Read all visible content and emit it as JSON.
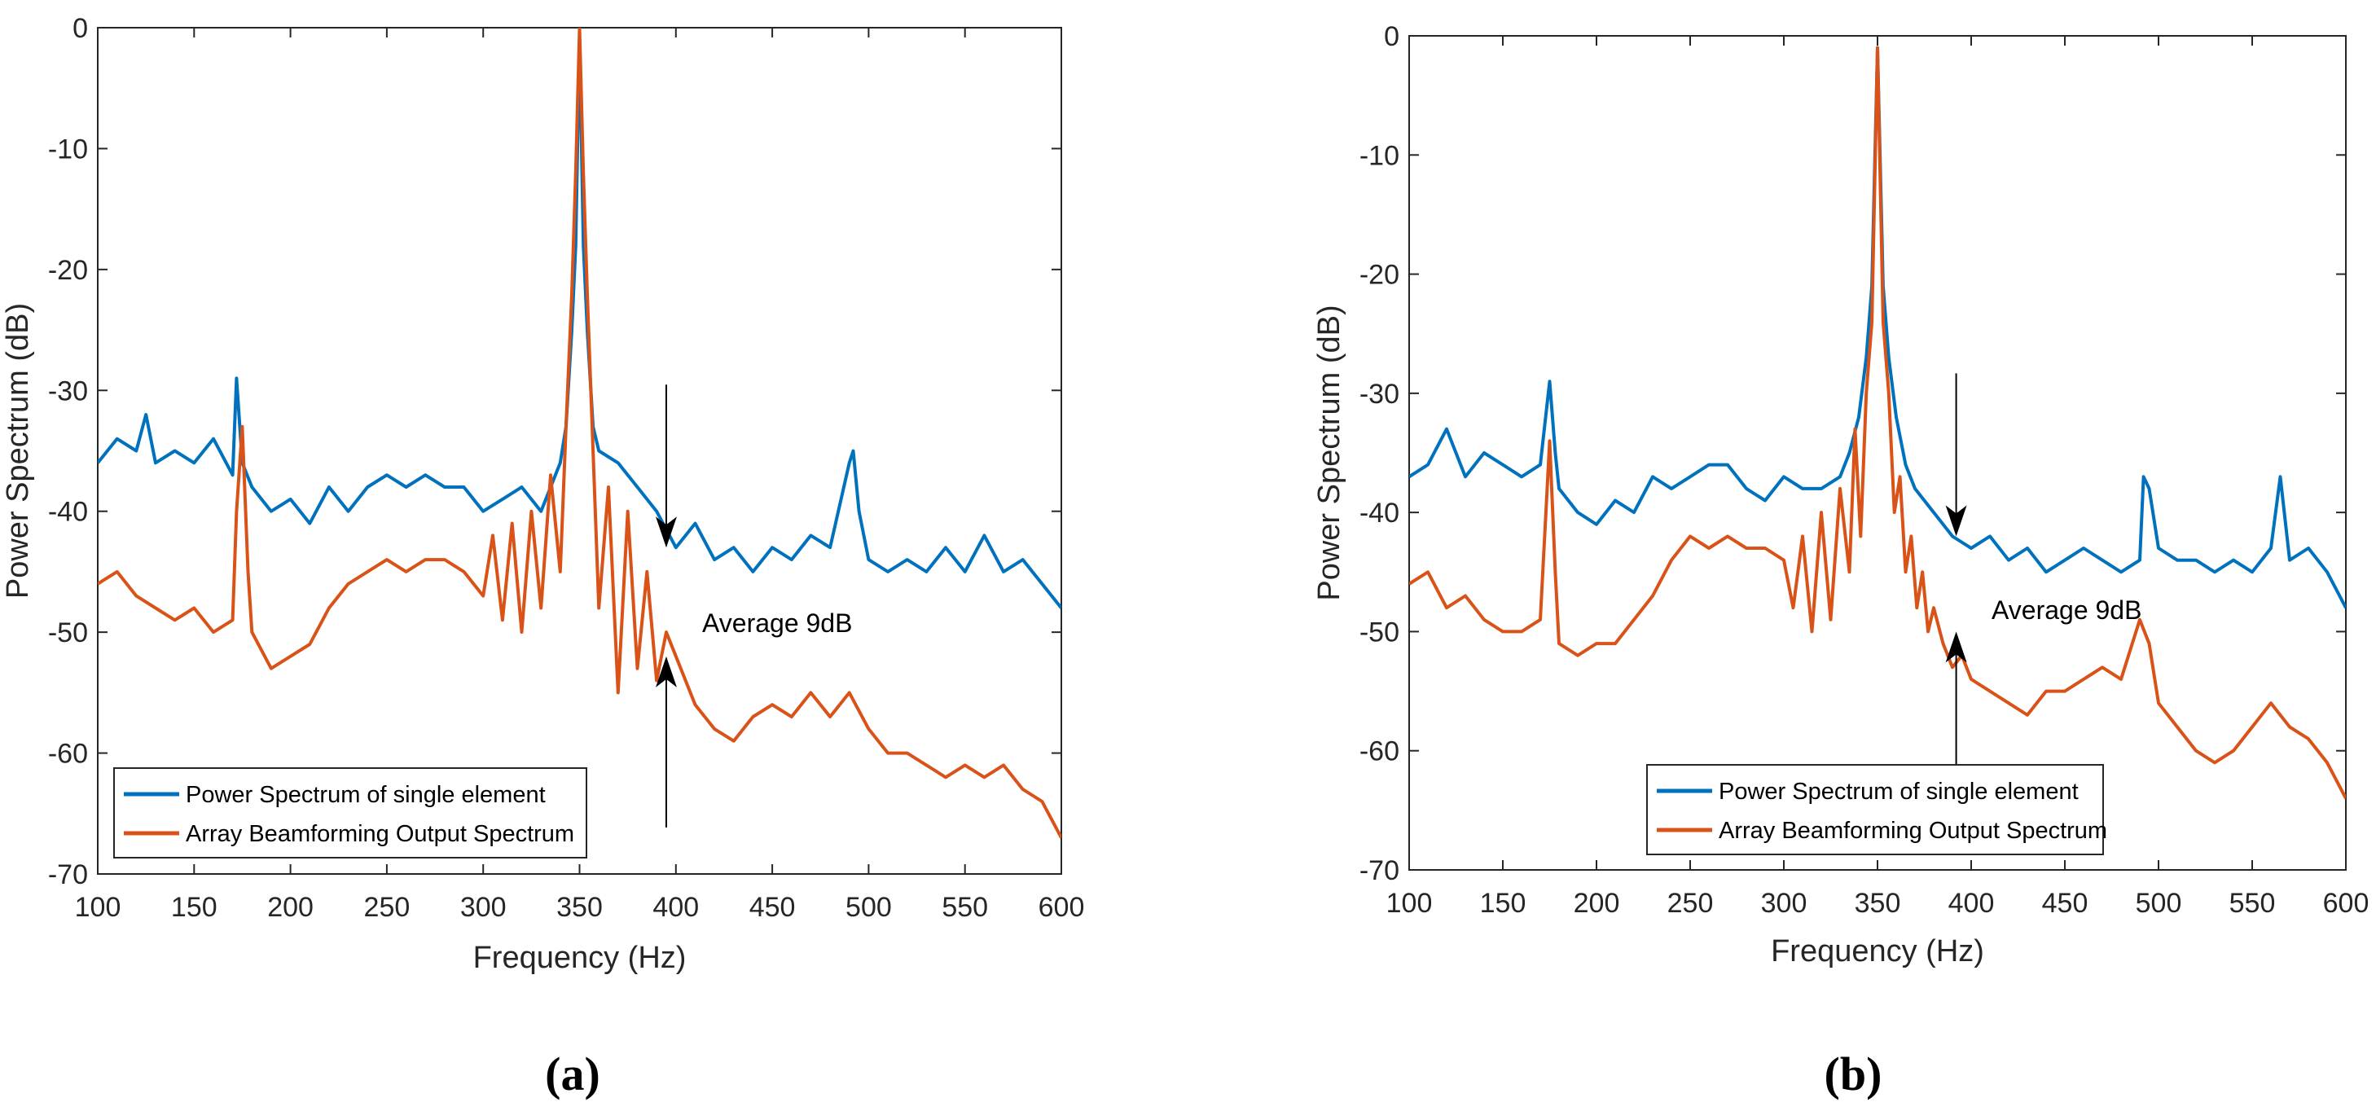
{
  "figure": {
    "panels": [
      {
        "label": "(a)"
      },
      {
        "label": "(b)"
      }
    ]
  },
  "chart_data": [
    {
      "type": "line",
      "panel": "(a)",
      "title": "",
      "xlabel": "Frequency (Hz)",
      "ylabel": "Power Spectrum (dB)",
      "xlim": [
        100,
        600
      ],
      "ylim": [
        -70,
        0
      ],
      "xticks": [
        100,
        150,
        200,
        250,
        300,
        350,
        400,
        450,
        500,
        550,
        600
      ],
      "yticks": [
        0,
        -10,
        -20,
        -30,
        -40,
        -50,
        -60,
        -70
      ],
      "legend_location": "bottom-left",
      "annotation": {
        "text": "Average 9dB",
        "arrow_x": 395,
        "upper_arrow_tip_y": -43,
        "lower_arrow_tip_y": -52
      },
      "series": [
        {
          "name": "Power Spectrum of single element",
          "color": "#0072BD",
          "x": [
            100,
            110,
            120,
            125,
            130,
            140,
            150,
            160,
            170,
            172,
            175,
            180,
            190,
            200,
            210,
            220,
            230,
            240,
            250,
            260,
            270,
            280,
            290,
            300,
            310,
            320,
            330,
            340,
            343,
            346,
            348,
            350,
            352,
            354,
            357,
            360,
            370,
            380,
            390,
            400,
            410,
            420,
            430,
            440,
            450,
            460,
            470,
            480,
            490,
            492,
            495,
            500,
            510,
            520,
            530,
            540,
            550,
            560,
            570,
            580,
            590,
            600
          ],
          "y": [
            -36,
            -34,
            -35,
            -32,
            -36,
            -35,
            -36,
            -34,
            -37,
            -29,
            -36,
            -38,
            -40,
            -39,
            -41,
            -38,
            -40,
            -38,
            -37,
            -38,
            -37,
            -38,
            -38,
            -40,
            -39,
            -38,
            -40,
            -36,
            -33,
            -25,
            -18,
            -1,
            -18,
            -25,
            -33,
            -35,
            -36,
            -38,
            -40,
            -43,
            -41,
            -44,
            -43,
            -45,
            -43,
            -44,
            -42,
            -43,
            -36,
            -35,
            -40,
            -44,
            -45,
            -44,
            -45,
            -43,
            -45,
            -42,
            -45,
            -44,
            -46,
            -48
          ]
        },
        {
          "name": "Array Beamforming Output Spectrum",
          "color": "#D95319",
          "x": [
            100,
            110,
            120,
            130,
            140,
            150,
            160,
            170,
            172,
            175,
            178,
            180,
            190,
            200,
            210,
            220,
            230,
            240,
            250,
            260,
            270,
            280,
            290,
            300,
            305,
            310,
            315,
            320,
            325,
            330,
            335,
            340,
            343,
            346,
            348,
            350,
            352,
            354,
            357,
            360,
            365,
            370,
            375,
            380,
            385,
            390,
            395,
            400,
            410,
            420,
            430,
            440,
            450,
            460,
            470,
            480,
            490,
            500,
            510,
            520,
            530,
            540,
            550,
            560,
            570,
            580,
            590,
            600
          ],
          "y": [
            -46,
            -45,
            -47,
            -48,
            -49,
            -48,
            -50,
            -49,
            -40,
            -33,
            -45,
            -50,
            -53,
            -52,
            -51,
            -48,
            -46,
            -45,
            -44,
            -45,
            -44,
            -44,
            -45,
            -47,
            -42,
            -49,
            -41,
            -50,
            -40,
            -48,
            -37,
            -45,
            -33,
            -22,
            -12,
            0,
            -12,
            -22,
            -35,
            -48,
            -38,
            -55,
            -40,
            -53,
            -45,
            -54,
            -50,
            -52,
            -56,
            -58,
            -59,
            -57,
            -56,
            -57,
            -55,
            -57,
            -55,
            -58,
            -60,
            -60,
            -61,
            -62,
            -61,
            -62,
            -61,
            -63,
            -64,
            -67
          ]
        }
      ]
    },
    {
      "type": "line",
      "panel": "(b)",
      "title": "",
      "xlabel": "Frequency (Hz)",
      "ylabel": "Power Spectrum (dB)",
      "xlim": [
        100,
        600
      ],
      "ylim": [
        -70,
        0
      ],
      "xticks": [
        100,
        150,
        200,
        250,
        300,
        350,
        400,
        450,
        500,
        550,
        600
      ],
      "yticks": [
        0,
        -10,
        -20,
        -30,
        -40,
        -50,
        -60,
        -70
      ],
      "legend_location": "bottom-right",
      "annotation": {
        "text": "Average 9dB",
        "arrow_x": 392,
        "upper_arrow_tip_y": -42,
        "lower_arrow_tip_y": -50
      },
      "series": [
        {
          "name": "Power Spectrum of single element",
          "color": "#0072BD",
          "x": [
            100,
            110,
            120,
            130,
            140,
            150,
            160,
            170,
            175,
            178,
            180,
            190,
            200,
            210,
            220,
            230,
            240,
            250,
            260,
            270,
            280,
            290,
            300,
            310,
            320,
            330,
            335,
            340,
            344,
            347,
            350,
            353,
            356,
            360,
            365,
            370,
            380,
            390,
            400,
            410,
            420,
            430,
            440,
            450,
            460,
            470,
            480,
            490,
            492,
            495,
            500,
            510,
            520,
            530,
            540,
            550,
            560,
            565,
            570,
            580,
            590,
            600
          ],
          "y": [
            -37,
            -36,
            -33,
            -37,
            -35,
            -36,
            -37,
            -36,
            -29,
            -35,
            -38,
            -40,
            -41,
            -39,
            -40,
            -37,
            -38,
            -37,
            -36,
            -36,
            -38,
            -39,
            -37,
            -38,
            -38,
            -37,
            -35,
            -32,
            -27,
            -21,
            -1,
            -21,
            -27,
            -32,
            -36,
            -38,
            -40,
            -42,
            -43,
            -42,
            -44,
            -43,
            -45,
            -44,
            -43,
            -44,
            -45,
            -44,
            -37,
            -38,
            -43,
            -44,
            -44,
            -45,
            -44,
            -45,
            -43,
            -37,
            -44,
            -43,
            -45,
            -48
          ]
        },
        {
          "name": "Array Beamforming Output Spectrum",
          "color": "#D95319",
          "x": [
            100,
            110,
            120,
            130,
            140,
            150,
            160,
            170,
            175,
            178,
            180,
            190,
            200,
            210,
            220,
            230,
            240,
            250,
            260,
            270,
            280,
            290,
            300,
            305,
            310,
            315,
            320,
            325,
            330,
            335,
            338,
            341,
            344,
            347,
            350,
            353,
            356,
            359,
            362,
            365,
            368,
            371,
            374,
            377,
            380,
            385,
            390,
            395,
            400,
            410,
            420,
            430,
            440,
            450,
            460,
            470,
            480,
            490,
            495,
            500,
            510,
            520,
            530,
            540,
            550,
            560,
            570,
            580,
            590,
            600
          ],
          "y": [
            -46,
            -45,
            -48,
            -47,
            -49,
            -50,
            -50,
            -49,
            -34,
            -45,
            -51,
            -52,
            -51,
            -51,
            -49,
            -47,
            -44,
            -42,
            -43,
            -42,
            -43,
            -43,
            -44,
            -48,
            -42,
            -50,
            -40,
            -49,
            -38,
            -45,
            -33,
            -42,
            -30,
            -24,
            -1,
            -24,
            -30,
            -40,
            -37,
            -45,
            -42,
            -48,
            -45,
            -50,
            -48,
            -51,
            -53,
            -52,
            -54,
            -55,
            -56,
            -57,
            -55,
            -55,
            -54,
            -53,
            -54,
            -49,
            -51,
            -56,
            -58,
            -60,
            -61,
            -60,
            -58,
            -56,
            -58,
            -59,
            -61,
            -64
          ]
        }
      ]
    }
  ]
}
